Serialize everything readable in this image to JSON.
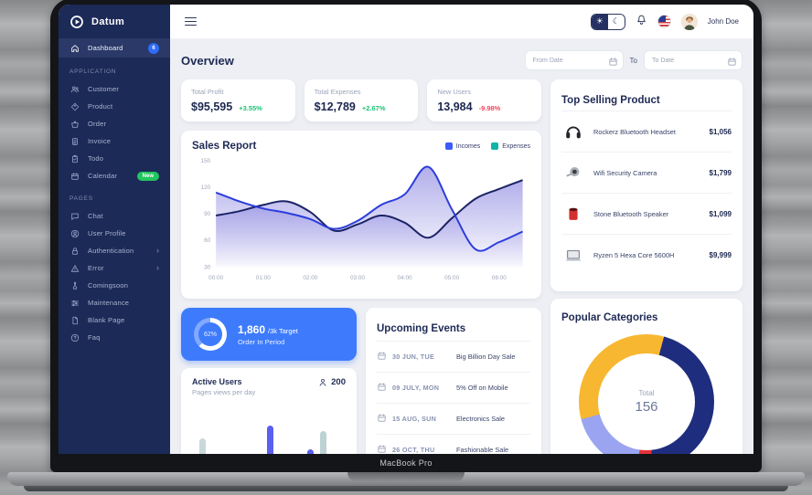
{
  "device": {
    "label": "MacBook Pro"
  },
  "sidebar": {
    "brand": "Datum",
    "dashboard": {
      "label": "Dashboard",
      "badge": "6"
    },
    "sections": [
      {
        "title": "APPLICATION",
        "items": [
          {
            "label": "Customer"
          },
          {
            "label": "Product"
          },
          {
            "label": "Order"
          },
          {
            "label": "Invoice"
          },
          {
            "label": "Todo"
          },
          {
            "label": "Calendar",
            "badge": "New"
          }
        ]
      },
      {
        "title": "PAGES",
        "items": [
          {
            "label": "Chat"
          },
          {
            "label": "User Profile"
          },
          {
            "label": "Authentication",
            "chevron": "›"
          },
          {
            "label": "Error",
            "chevron": "›"
          },
          {
            "label": "Comingsoon"
          },
          {
            "label": "Maintenance"
          },
          {
            "label": "Blank Page"
          },
          {
            "label": "Faq"
          }
        ]
      }
    ]
  },
  "topbar": {
    "user_name": "John Doe"
  },
  "overview": {
    "title": "Overview",
    "from_placeholder": "From Date",
    "to_label": "To",
    "to_placeholder": "To Date"
  },
  "stats": [
    {
      "label": "Total Profit",
      "value": "$95,595",
      "delta": "+3.55%",
      "trend": "up"
    },
    {
      "label": "Total Expenses",
      "value": "$12,789",
      "delta": "+2.67%",
      "trend": "up"
    },
    {
      "label": "New Users",
      "value": "13,984",
      "delta": "-9.98%",
      "trend": "down"
    }
  ],
  "sales_report": {
    "title": "Sales Report",
    "legend": [
      {
        "label": "Incomes",
        "color": "#3b5bfd"
      },
      {
        "label": "Expenses",
        "color": "#12b3a8"
      }
    ]
  },
  "chart_data": [
    {
      "type": "area",
      "title": "Sales Report",
      "x_tick_labels": [
        "00:00",
        "01:00",
        "02:00",
        "03:00",
        "04:00",
        "05:00",
        "06:00"
      ],
      "y_ticks": [
        30,
        60,
        90,
        120,
        150
      ],
      "ylim": [
        30,
        150
      ],
      "fill_color": "#655ed6",
      "series": [
        {
          "name": "Expenses",
          "color": "#1b2364",
          "values": [
            88,
            93,
            100,
            104,
            92,
            71,
            78,
            88,
            80,
            63,
            85,
            107,
            118,
            128
          ]
        },
        {
          "name": "Incomes",
          "color": "#2b3ddb",
          "values": [
            114,
            104,
            96,
            91,
            84,
            73,
            82,
            100,
            112,
            143,
            95,
            50,
            58,
            70
          ]
        }
      ]
    },
    {
      "type": "bar",
      "title": "Active Users — Pages views per day",
      "bars": [
        {
          "x": 8,
          "h": 28,
          "color": "#c9d8da"
        },
        {
          "x": 22,
          "h": 10,
          "color": "#1b2a6b"
        },
        {
          "x": 82,
          "h": 42,
          "color": "#5b5ff0"
        },
        {
          "x": 126,
          "h": 16,
          "color": "#5b5ff0"
        },
        {
          "x": 140,
          "h": 36,
          "color": "#bcd2d4"
        }
      ]
    },
    {
      "type": "donut",
      "title": "Popular Categories",
      "total": 156,
      "start_angle": 15,
      "segments": [
        {
          "value": 69,
          "color": "#1f2d7e"
        },
        {
          "value": 6,
          "color": "#e53238"
        },
        {
          "value": 29,
          "color": "#9aa4f0"
        },
        {
          "value": 52,
          "color": "#f7b731"
        }
      ]
    }
  ],
  "target_card": {
    "percent": 62,
    "percent_label": "62%",
    "value": "1,860",
    "target_label": "/3k Target",
    "caption": "Order In Period"
  },
  "active_users": {
    "title": "Active Users",
    "subtitle": "Pages views per day",
    "count": "200"
  },
  "events": {
    "title": "Upcoming Events",
    "items": [
      {
        "date": "30 JUN, TUE",
        "name": "Big Billion Day Sale"
      },
      {
        "date": "09 JULY, MON",
        "name": "5% Off on Mobile"
      },
      {
        "date": "15 AUG, SUN",
        "name": "Electronics Sale"
      },
      {
        "date": "26 OCT, THU",
        "name": "Fashionable Sale"
      }
    ]
  },
  "categories": {
    "title": "Popular Categories",
    "total_label": "Total",
    "total_value": "156"
  },
  "products": {
    "title": "Top Selling Product",
    "items": [
      {
        "name": "Rockerz Bluetooth Headset",
        "price": "$1,056"
      },
      {
        "name": "Wifi Security Camera",
        "price": "$1,799"
      },
      {
        "name": "Stone Bluetooth Speaker",
        "price": "$1,099"
      },
      {
        "name": "Ryzen 5 Hexa Core 5600H",
        "price": "$9,999"
      }
    ]
  }
}
